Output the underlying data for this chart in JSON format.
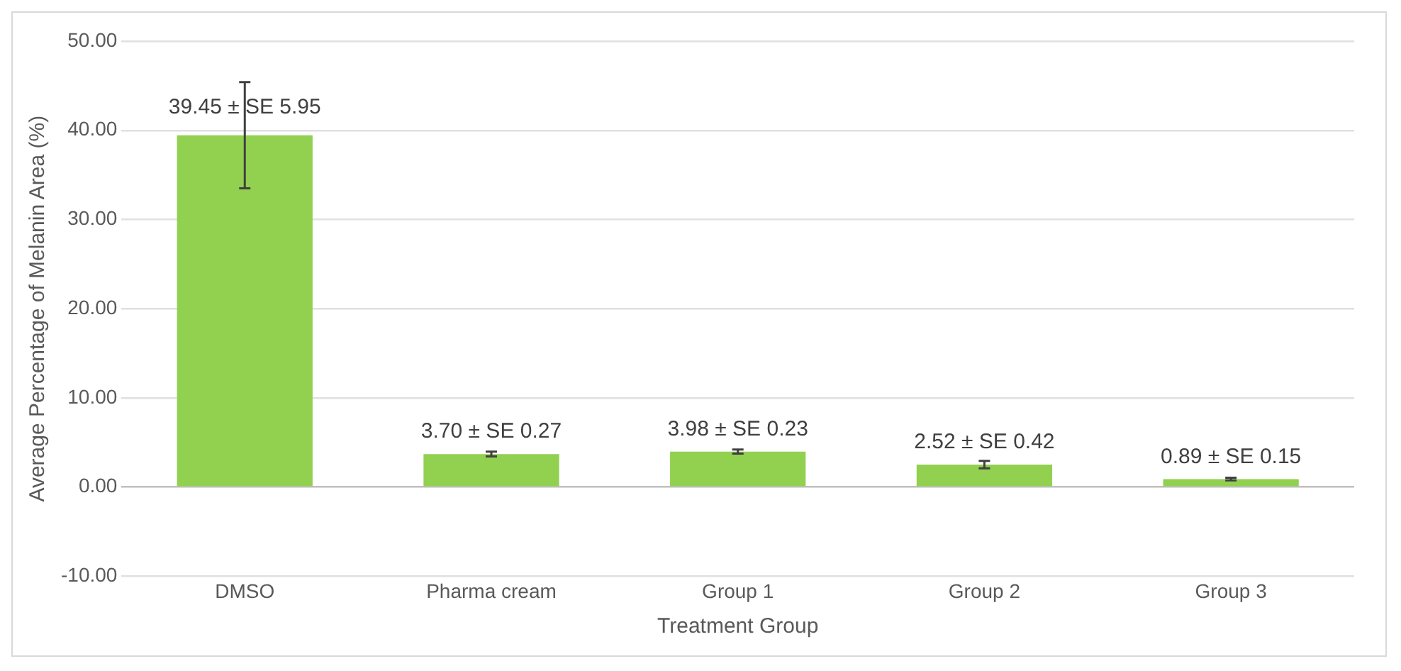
{
  "chart_data": {
    "type": "bar",
    "xlabel": "Treatment Group",
    "ylabel": "Average Percentage of Melanin Area (%)",
    "categories": [
      "DMSO",
      "Pharma cream",
      "Group 1",
      "Group 2",
      "Group 3"
    ],
    "values": [
      39.45,
      3.7,
      3.98,
      2.52,
      0.89
    ],
    "errors": [
      5.95,
      0.27,
      0.23,
      0.42,
      0.15
    ],
    "value_labels": [
      "39.45 ± SE 5.95",
      "3.70 ± SE 0.27",
      "3.98 ± SE 0.23",
      "2.52 ± SE 0.42",
      "0.89 ± SE 0.15"
    ],
    "color": "#92d050",
    "ylim": [
      -10,
      50
    ],
    "yticks": [
      {
        "value": -10,
        "label": "-10.00"
      },
      {
        "value": 0,
        "label": "0.00"
      },
      {
        "value": 10,
        "label": "10.00"
      },
      {
        "value": 20,
        "label": "20.00"
      },
      {
        "value": 30,
        "label": "30.00"
      },
      {
        "value": 40,
        "label": "40.00"
      },
      {
        "value": 50,
        "label": "50.00"
      }
    ],
    "grid": "y",
    "legend": false
  }
}
